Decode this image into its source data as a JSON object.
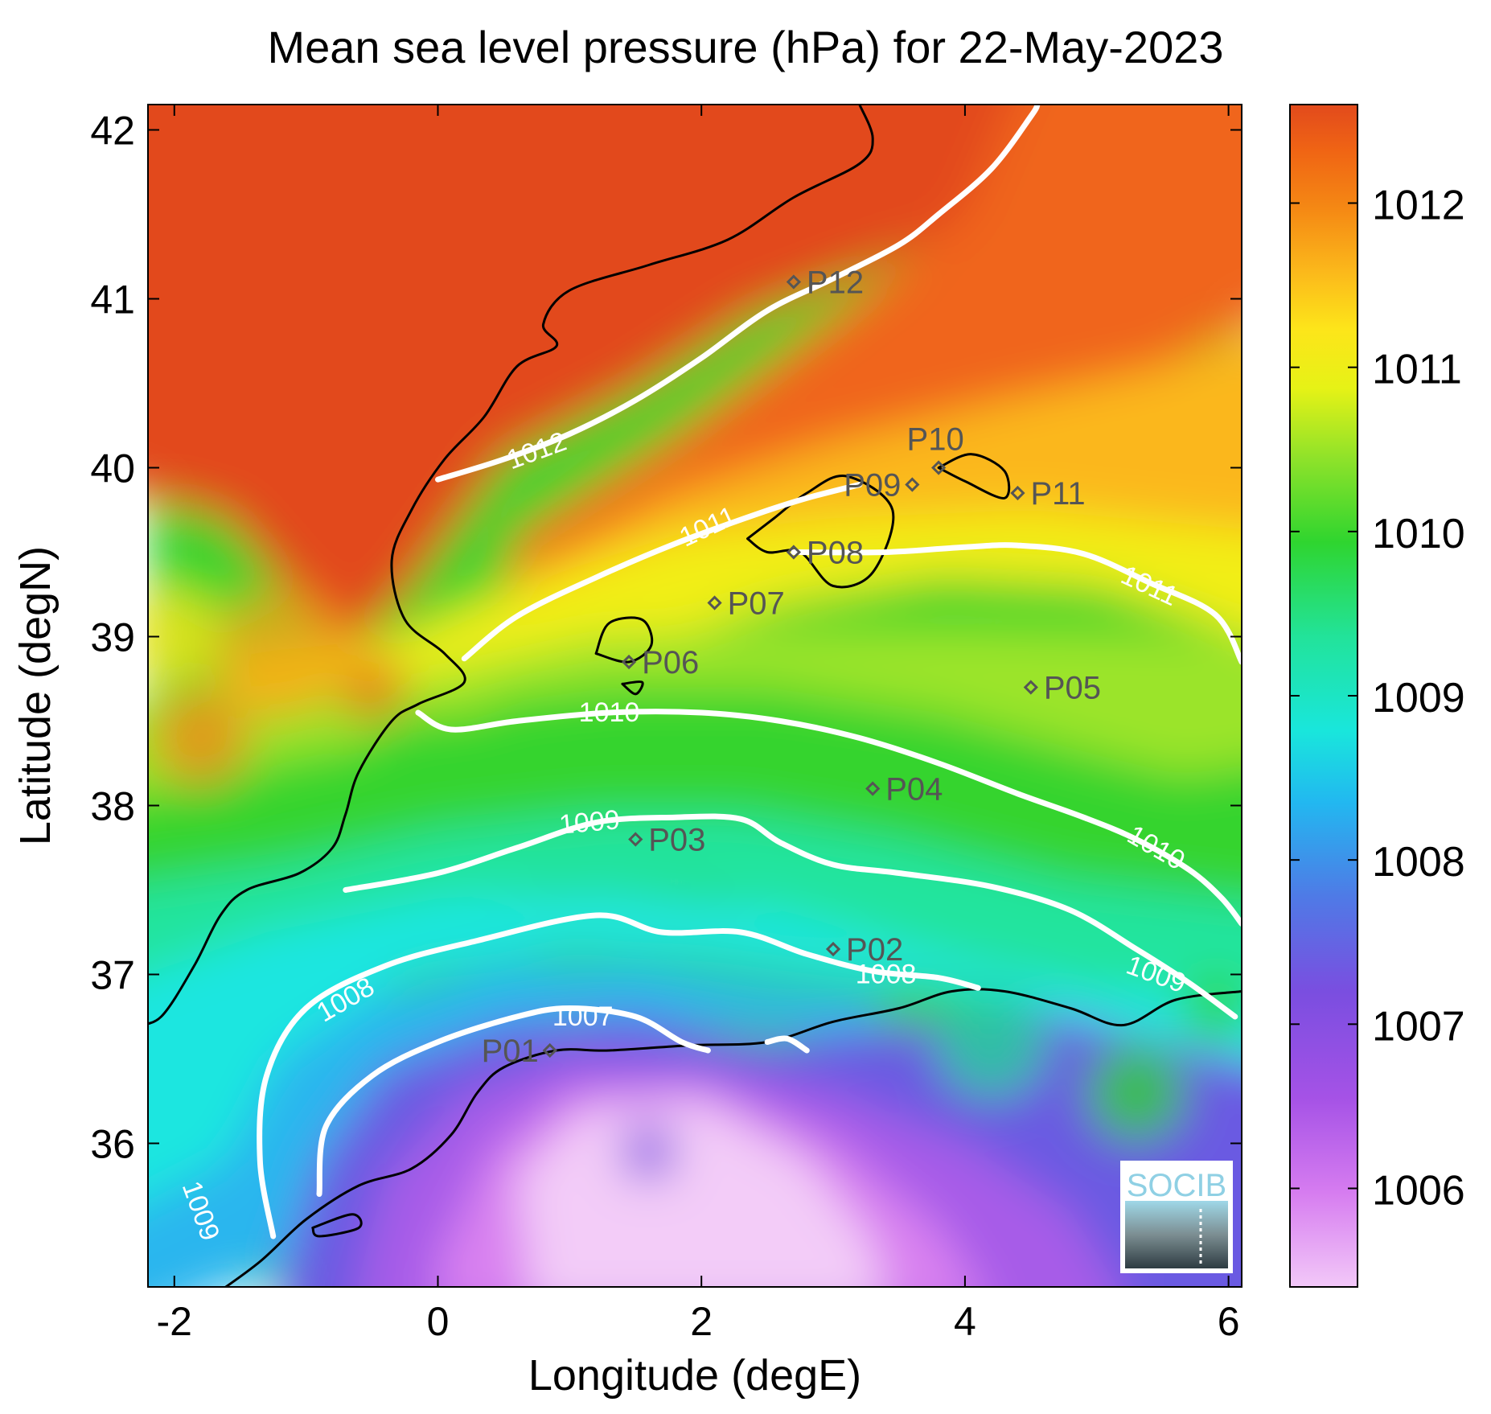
{
  "title": "Mean sea level pressure (hPa) for 22-May-2023",
  "xlabel": "Longitude (degE)",
  "ylabel": "Latitude (degN)",
  "logo_text": "SOCIB",
  "colors": {
    "frame": "#000000",
    "contour": "#ffffff",
    "coast": "#000000",
    "marker": "#555555",
    "high": "#e24a1c",
    "low": "#f2c8f8",
    "logo": "#8fd0e4"
  },
  "chart_data": {
    "type": "heatmap",
    "title": "Mean sea level pressure (hPa) for 22-May-2023",
    "xlabel": "Longitude (degE)",
    "ylabel": "Latitude (degN)",
    "xlim": [
      -2.2,
      6.1
    ],
    "ylim": [
      35.15,
      42.15
    ],
    "x_ticks": [
      -2,
      0,
      2,
      4,
      6
    ],
    "y_ticks": [
      36,
      37,
      38,
      39,
      40,
      41,
      42
    ],
    "colorbar": {
      "range": [
        1005.4,
        1012.6
      ],
      "ticks": [
        1006,
        1007,
        1008,
        1009,
        1010,
        1011,
        1012
      ]
    },
    "contours": [
      {
        "level": 1012,
        "label": "1012",
        "label_at": [
          0.75,
          40.1
        ],
        "label_rot": -20,
        "lines": [
          [
            [
              0,
              39.93
            ],
            [
              0.5,
              40.05
            ],
            [
              1.0,
              40.2
            ],
            [
              1.5,
              40.4
            ],
            [
              2.0,
              40.65
            ],
            [
              2.5,
              40.93
            ],
            [
              3.0,
              41.12
            ],
            [
              3.5,
              41.32
            ],
            [
              3.8,
              41.5
            ],
            [
              4.2,
              41.77
            ],
            [
              4.5,
              42.08
            ],
            [
              4.55,
              42.15
            ]
          ]
        ]
      },
      {
        "level": 1011,
        "label": "1011",
        "label_at": [
          2.05,
          39.65
        ],
        "label_rot": -25,
        "lines": [
          [
            [
              0.2,
              38.87
            ],
            [
              0.6,
              39.12
            ],
            [
              1.2,
              39.35
            ],
            [
              1.8,
              39.55
            ],
            [
              2.4,
              39.72
            ],
            [
              2.8,
              39.82
            ],
            [
              3.2,
              39.9
            ]
          ],
          [
            [
              2.7,
              39.5
            ],
            [
              3.4,
              39.5
            ],
            [
              4.0,
              39.53
            ],
            [
              4.4,
              39.54
            ],
            [
              4.9,
              39.49
            ],
            [
              5.4,
              39.32
            ],
            [
              5.9,
              39.13
            ],
            [
              6.1,
              38.85
            ]
          ]
        ],
        "extra_labels": [
          {
            "at": [
              5.4,
              39.3
            ],
            "rot": 25
          }
        ]
      },
      {
        "level": 1010,
        "label": "1010",
        "label_at": [
          1.3,
          38.55
        ],
        "label_rot": 0,
        "lines": [
          [
            [
              -0.15,
              38.55
            ],
            [
              0.1,
              38.45
            ],
            [
              0.6,
              38.5
            ],
            [
              1.3,
              38.55
            ],
            [
              2.0,
              38.55
            ],
            [
              2.6,
              38.5
            ],
            [
              3.2,
              38.4
            ],
            [
              3.8,
              38.25
            ],
            [
              4.4,
              38.07
            ],
            [
              4.9,
              37.93
            ],
            [
              5.3,
              37.8
            ],
            [
              5.7,
              37.62
            ],
            [
              5.95,
              37.45
            ],
            [
              6.1,
              37.3
            ]
          ]
        ],
        "extra_labels": [
          {
            "at": [
              5.45,
              37.75
            ],
            "rot": 30
          }
        ]
      },
      {
        "level": 1009,
        "label": "1009",
        "label_at": [
          1.15,
          37.9
        ],
        "label_rot": -5,
        "lines": [
          [
            [
              -0.7,
              37.5
            ],
            [
              0,
              37.6
            ],
            [
              0.6,
              37.75
            ],
            [
              1.2,
              37.9
            ],
            [
              1.8,
              37.93
            ],
            [
              2.3,
              37.92
            ],
            [
              2.6,
              37.78
            ],
            [
              3.0,
              37.65
            ],
            [
              3.5,
              37.6
            ],
            [
              4.2,
              37.52
            ],
            [
              4.8,
              37.38
            ],
            [
              5.3,
              37.15
            ],
            [
              5.7,
              36.95
            ],
            [
              6.05,
              36.75
            ]
          ]
        ],
        "extra_labels": [
          {
            "at": [
              5.45,
              37.0
            ],
            "rot": 20
          },
          {
            "at": [
              -1.8,
              35.6
            ],
            "rot": 70
          }
        ]
      },
      {
        "level": 1008,
        "label": "1008",
        "label_at": [
          -0.7,
          36.85
        ],
        "label_rot": -30,
        "lines": [
          [
            [
              -1.25,
              35.45
            ],
            [
              -1.35,
              35.9
            ],
            [
              -1.3,
              36.4
            ],
            [
              -1.0,
              36.8
            ],
            [
              -0.4,
              37.05
            ],
            [
              0.3,
              37.2
            ],
            [
              1.2,
              37.35
            ],
            [
              1.7,
              37.25
            ],
            [
              2.3,
              37.25
            ],
            [
              2.8,
              37.12
            ],
            [
              3.3,
              37.02
            ],
            [
              3.8,
              36.98
            ],
            [
              4.1,
              36.92
            ]
          ]
        ],
        "extra_labels": [
          {
            "at": [
              3.4,
              37.0
            ],
            "rot": 0
          }
        ]
      },
      {
        "level": 1007,
        "label": "1007",
        "label_at": [
          1.1,
          36.75
        ],
        "label_rot": 0,
        "lines": [
          [
            [
              -0.9,
              35.7
            ],
            [
              -0.85,
              36.1
            ],
            [
              -0.5,
              36.4
            ],
            [
              0,
              36.6
            ],
            [
              0.6,
              36.75
            ],
            [
              1.0,
              36.8
            ],
            [
              1.5,
              36.75
            ],
            [
              1.85,
              36.6
            ],
            [
              2.05,
              36.55
            ]
          ],
          [
            [
              2.5,
              36.6
            ],
            [
              2.65,
              36.62
            ],
            [
              2.8,
              36.55
            ]
          ]
        ]
      }
    ],
    "stations": [
      {
        "name": "P01",
        "lon": 0.85,
        "lat": 36.55,
        "label_side": "left"
      },
      {
        "name": "P02",
        "lon": 3.0,
        "lat": 37.15,
        "label_side": "right"
      },
      {
        "name": "P03",
        "lon": 1.5,
        "lat": 37.8,
        "label_side": "right"
      },
      {
        "name": "P04",
        "lon": 3.3,
        "lat": 38.1,
        "label_side": "right"
      },
      {
        "name": "P05",
        "lon": 4.5,
        "lat": 38.7,
        "label_side": "right"
      },
      {
        "name": "P06",
        "lon": 1.45,
        "lat": 38.85,
        "label_side": "right"
      },
      {
        "name": "P07",
        "lon": 2.1,
        "lat": 39.2,
        "label_side": "right"
      },
      {
        "name": "P08",
        "lon": 2.7,
        "lat": 39.5,
        "label_side": "right"
      },
      {
        "name": "P09",
        "lon": 3.6,
        "lat": 39.9,
        "label_side": "left"
      },
      {
        "name": "P10",
        "lon": 3.8,
        "lat": 40.0,
        "label_side": "above"
      },
      {
        "name": "P11",
        "lon": 4.4,
        "lat": 39.85,
        "label_side": "right"
      },
      {
        "name": "P12",
        "lon": 2.7,
        "lat": 41.1,
        "label_side": "right"
      }
    ]
  }
}
